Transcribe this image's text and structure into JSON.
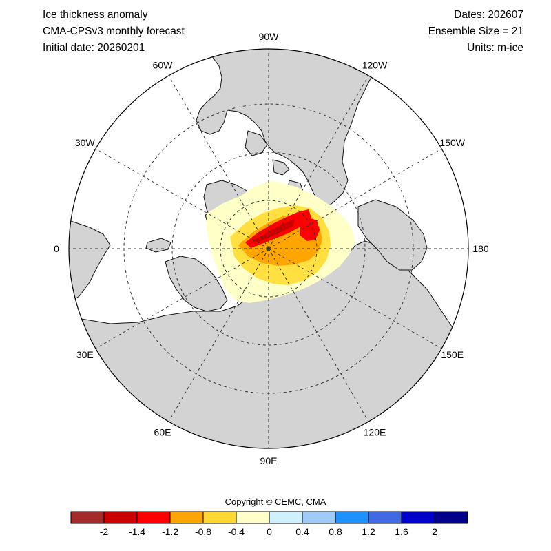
{
  "header": {
    "left": [
      "Ice thickness anomaly",
      "CMA-CPSv3 monthly forecast",
      "Initial date: 20260201"
    ],
    "right": [
      "Dates: 202607",
      "Ensemble Size = 21",
      "Units: m-ice"
    ]
  },
  "map": {
    "projection": "north-polar-stereographic",
    "longitude_labels": [
      {
        "label": "90W"
      },
      {
        "label": "120W"
      },
      {
        "label": "150W"
      },
      {
        "label": "180"
      },
      {
        "label": "150E"
      },
      {
        "label": "120E"
      },
      {
        "label": "90E"
      },
      {
        "label": "60E"
      },
      {
        "label": "30E"
      },
      {
        "label": "0"
      },
      {
        "label": "30W"
      },
      {
        "label": "60W"
      }
    ],
    "colors": {
      "land": "#d3d3d3",
      "ocean": "#ffffff",
      "anomaly_pale": "#ffffc8",
      "anomaly_yellow": "#ffe040",
      "anomaly_orange": "#ffa500",
      "anomaly_red": "#ff0000",
      "anomaly_dark_red": "#cc0000"
    }
  },
  "copyright": "Copyright © CEMC, CMA",
  "legend": {
    "ticks": [
      "-2",
      "-1.4",
      "-1.2",
      "-0.8",
      "-0.4",
      "0",
      "0.4",
      "0.8",
      "1.2",
      "1.6",
      "2"
    ],
    "colors": [
      "#a52a2a",
      "#cc0000",
      "#ff0000",
      "#ffa500",
      "#ffd733",
      "#ffffc8",
      "#d0f0ff",
      "#9fcbf7",
      "#1e90ff",
      "#4169e1",
      "#0000cd",
      "#00008b"
    ]
  }
}
